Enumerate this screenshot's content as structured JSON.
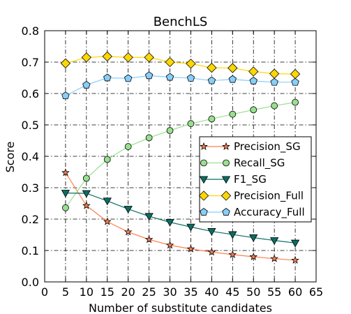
{
  "chart_data": {
    "type": "line",
    "title": "BenchLS",
    "xlabel": "Number of substitute candidates",
    "ylabel": "Score",
    "xlim": [
      0,
      65
    ],
    "ylim": [
      0.0,
      0.8
    ],
    "xticks": [
      "0",
      "5",
      "10",
      "15",
      "20",
      "25",
      "30",
      "35",
      "40",
      "45",
      "50",
      "55",
      "60",
      "65"
    ],
    "yticks": [
      "0.0",
      "0.1",
      "0.2",
      "0.3",
      "0.4",
      "0.5",
      "0.6",
      "0.7",
      "0.8"
    ],
    "grid": true,
    "legend_position": "center-right",
    "x": [
      5,
      10,
      15,
      20,
      25,
      30,
      35,
      40,
      45,
      50,
      55,
      60
    ],
    "series": [
      {
        "name": "Precision_SG",
        "color": "#ff7f50",
        "marker": "star",
        "marker_fill": "#ff7f50",
        "values": [
          0.348,
          0.243,
          0.192,
          0.159,
          0.135,
          0.117,
          0.105,
          0.095,
          0.087,
          0.08,
          0.074,
          0.069
        ]
      },
      {
        "name": "Recall_SG",
        "color": "#98e08f",
        "marker": "circle",
        "marker_fill": "#98e08f",
        "values": [
          0.236,
          0.33,
          0.39,
          0.431,
          0.459,
          0.482,
          0.504,
          0.519,
          0.534,
          0.548,
          0.561,
          0.572
        ]
      },
      {
        "name": "F1_SG",
        "color": "#0b6e64",
        "marker": "triangle-down",
        "marker_fill": "#0b6e64",
        "values": [
          0.283,
          0.282,
          0.258,
          0.232,
          0.209,
          0.19,
          0.175,
          0.161,
          0.151,
          0.141,
          0.132,
          0.124
        ]
      },
      {
        "name": "Precision_Full",
        "color": "#ffd700",
        "marker": "diamond",
        "marker_fill": "#ffd700",
        "values": [
          0.696,
          0.715,
          0.718,
          0.715,
          0.715,
          0.7,
          0.695,
          0.682,
          0.681,
          0.67,
          0.663,
          0.662
        ]
      },
      {
        "name": "Accuracy_Full",
        "color": "#87cefa",
        "marker": "pentagon",
        "marker_fill": "#87cefa",
        "values": [
          0.593,
          0.627,
          0.65,
          0.648,
          0.657,
          0.652,
          0.649,
          0.641,
          0.645,
          0.64,
          0.636,
          0.636
        ]
      }
    ]
  }
}
